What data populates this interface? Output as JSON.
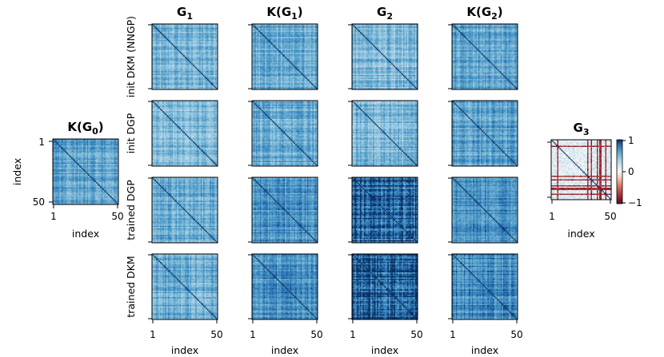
{
  "chart_data": {
    "type": "heatmap",
    "colormap": "RdBu",
    "matrix_size": 50,
    "xlabel": "index",
    "ylabel": "index",
    "tick_labels": [
      "1",
      "50"
    ],
    "left_panel": {
      "title": "K(G₀)",
      "title_main": "K(",
      "title_bold": "G",
      "title_sub": "0",
      "title_close": ")"
    },
    "column_titles": [
      {
        "main": "",
        "bold": "G",
        "sub": "1",
        "close": ""
      },
      {
        "main": "K(",
        "bold": "G",
        "sub": "1",
        "close": ")"
      },
      {
        "main": "",
        "bold": "G",
        "sub": "2",
        "close": ""
      },
      {
        "main": "K(",
        "bold": "G",
        "sub": "2",
        "close": ")"
      }
    ],
    "row_labels": [
      "init DKM (NNGP)",
      "init DGP",
      "trained DGP",
      "trained DKM"
    ],
    "right_panel": {
      "title_bold": "G",
      "title_sub": "3"
    },
    "colorbar": {
      "ticks": [
        "1",
        "0",
        "−1"
      ],
      "range": [
        -1,
        1
      ]
    },
    "intensity": {
      "left": 0.62,
      "grid": [
        [
          0.52,
          0.58,
          0.52,
          0.62
        ],
        [
          0.52,
          0.58,
          0.52,
          0.62
        ],
        [
          0.58,
          0.7,
          0.9,
          0.72
        ],
        [
          0.58,
          0.7,
          0.9,
          0.72
        ]
      ]
    }
  }
}
